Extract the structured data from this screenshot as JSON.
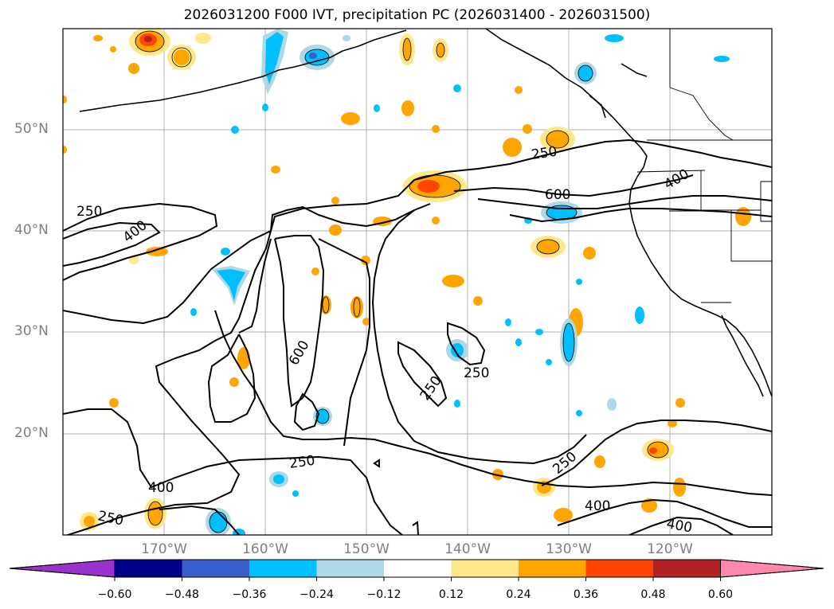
{
  "title": "2026031200 F000 IVT, precipitation PC (2026031400 - 2026031500)",
  "latitude_labels": [
    "50°N",
    "40°N",
    "30°N",
    "20°N"
  ],
  "longitude_labels": [
    "170°W",
    "160°W",
    "150°W",
    "140°W",
    "130°W",
    "120°W"
  ],
  "contour_labels": [
    "250",
    "400",
    "250",
    "600",
    "400",
    "600",
    "250",
    "250",
    "250",
    "250",
    "400",
    "250",
    "400",
    "400"
  ],
  "colorbar": {
    "ticks": [
      "−0.60",
      "−0.48",
      "−0.36",
      "−0.24",
      "−0.12",
      "0.12",
      "0.24",
      "0.36",
      "0.48",
      "0.60"
    ],
    "colors": [
      "#9932cc",
      "#00008b",
      "#3a5fcd",
      "#00bfff",
      "#add8e6",
      "#ffffff",
      "#ffe88a",
      "#ffa500",
      "#ff4500",
      "#b22222",
      "#ff88aa"
    ]
  }
}
